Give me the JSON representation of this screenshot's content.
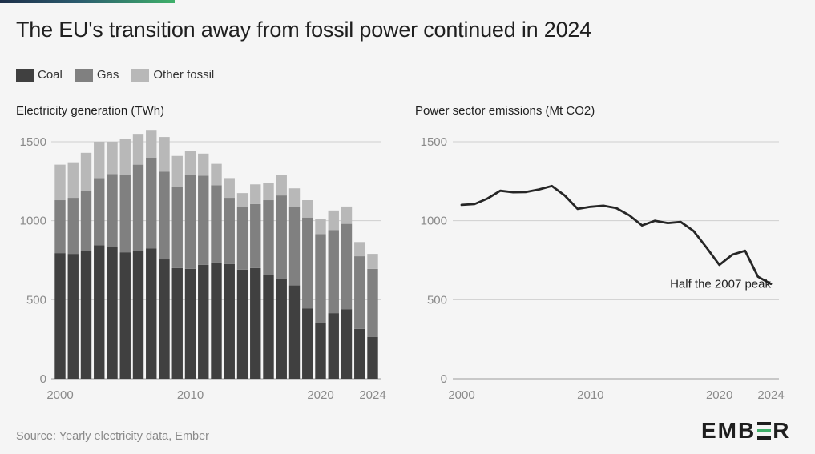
{
  "header": {
    "title": "The EU's transition away from fossil power continued in 2024"
  },
  "legend": [
    {
      "label": "Coal",
      "color": "#404040"
    },
    {
      "label": "Gas",
      "color": "#808080"
    },
    {
      "label": "Other fossil",
      "color": "#b8b8b8"
    }
  ],
  "footer": {
    "source": "Source: Yearly electricity data, Ember"
  },
  "logo": {
    "pre": "EMB",
    "post": "R",
    "accent": "#3fb06a"
  },
  "chart_data": [
    {
      "type": "bar",
      "stacked": true,
      "title": "Electricity generation (TWh)",
      "categories": [
        2000,
        2001,
        2002,
        2003,
        2004,
        2005,
        2006,
        2007,
        2008,
        2009,
        2010,
        2011,
        2012,
        2013,
        2014,
        2015,
        2016,
        2017,
        2018,
        2019,
        2020,
        2021,
        2022,
        2023,
        2024
      ],
      "x_ticks": [
        2000,
        2010,
        2020,
        2024
      ],
      "series": [
        {
          "name": "Coal",
          "color": "#404040",
          "values": [
            795,
            790,
            810,
            845,
            835,
            800,
            810,
            825,
            755,
            700,
            695,
            720,
            735,
            725,
            690,
            700,
            655,
            635,
            590,
            445,
            350,
            415,
            440,
            315,
            265
          ]
        },
        {
          "name": "Gas",
          "color": "#808080",
          "values": [
            335,
            355,
            380,
            425,
            460,
            490,
            545,
            575,
            555,
            515,
            595,
            565,
            490,
            420,
            395,
            405,
            475,
            525,
            495,
            575,
            565,
            525,
            540,
            460,
            430
          ]
        },
        {
          "name": "Other fossil",
          "color": "#b8b8b8",
          "values": [
            225,
            225,
            240,
            230,
            205,
            230,
            195,
            175,
            220,
            195,
            150,
            140,
            135,
            125,
            90,
            125,
            110,
            130,
            120,
            110,
            95,
            125,
            110,
            90,
            95
          ]
        }
      ],
      "ylim": [
        0,
        1600
      ],
      "y_ticks": [
        0,
        500,
        1000,
        1500
      ],
      "grid": true
    },
    {
      "type": "line",
      "title": "Power sector emissions (Mt CO2)",
      "x": [
        2000,
        2001,
        2002,
        2003,
        2004,
        2005,
        2006,
        2007,
        2008,
        2009,
        2010,
        2011,
        2012,
        2013,
        2014,
        2015,
        2016,
        2017,
        2018,
        2019,
        2020,
        2021,
        2022,
        2023,
        2024
      ],
      "x_ticks": [
        2000,
        2010,
        2020,
        2024
      ],
      "series": [
        {
          "color": "#262626",
          "values": [
            1100,
            1105,
            1140,
            1190,
            1180,
            1182,
            1198,
            1220,
            1160,
            1075,
            1088,
            1095,
            1080,
            1035,
            970,
            1000,
            985,
            992,
            935,
            830,
            720,
            785,
            810,
            645,
            600
          ]
        }
      ],
      "ylim": [
        0,
        1600
      ],
      "y_ticks": [
        0,
        500,
        1000,
        1500
      ],
      "grid": true,
      "annotation": {
        "text": "Half the 2007 peak",
        "x": 2024,
        "y": 600
      }
    }
  ]
}
